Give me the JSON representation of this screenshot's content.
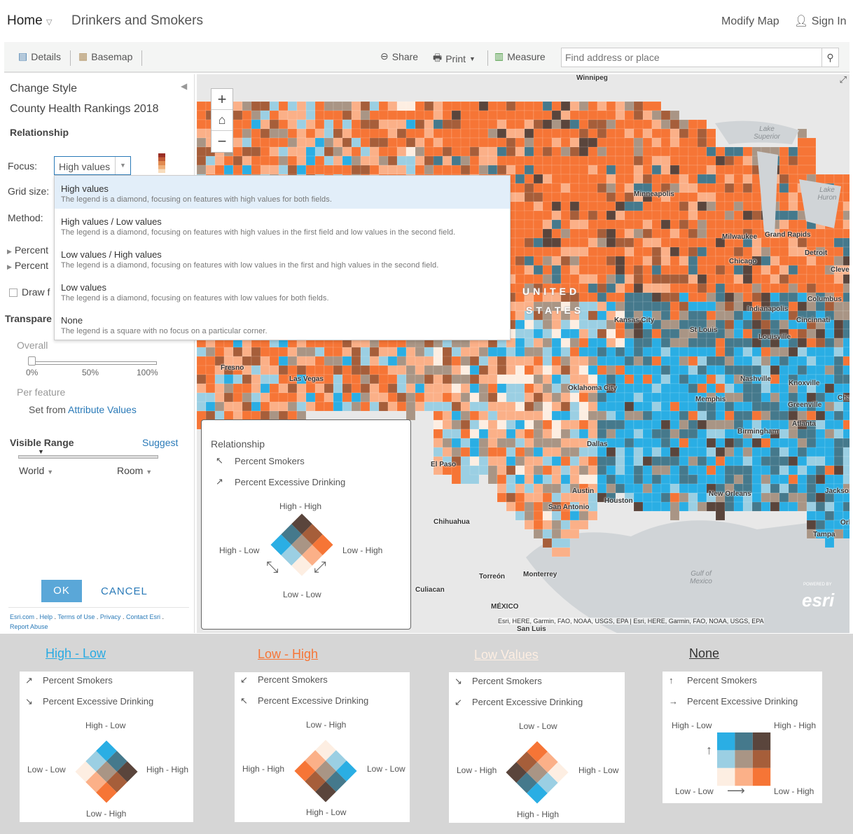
{
  "header": {
    "home": "Home",
    "title": "Drinkers and Smokers",
    "modify": "Modify Map",
    "signin": "Sign In"
  },
  "toolbar": {
    "details": "Details",
    "basemap": "Basemap",
    "share": "Share",
    "print": "Print",
    "measure": "Measure",
    "search_placeholder": "Find address or place"
  },
  "panel": {
    "change_style": "Change Style",
    "layer": "County Health Rankings 2018",
    "relationship": "Relationship",
    "focus_label": "Focus:",
    "focus_value": "High values",
    "grid_label": "Grid size:",
    "method_label": "Method:",
    "field1": "Percent",
    "field2": "Percent",
    "draw": "Draw f",
    "transparency": "Transpare",
    "overall": "Overall",
    "t0": "0%",
    "t50": "50%",
    "t100": "100%",
    "per_feature": "Per feature",
    "set_from": "Set from",
    "attr_values": "Attribute Values",
    "visible_range": "Visible Range",
    "suggest": "Suggest",
    "world": "World",
    "room": "Room",
    "ok": "OK",
    "cancel": "CANCEL",
    "footer": [
      "Esri.com",
      "Help",
      "Terms of Use",
      "Privacy",
      "Contact Esri",
      "Report Abuse"
    ]
  },
  "focus_options": [
    {
      "title": "High values",
      "desc": "The legend is a diamond, focusing on features with high values for both fields."
    },
    {
      "title": "High values / Low values",
      "desc": "The legend is a diamond, focusing on features with high values in the first field and low values in the second field."
    },
    {
      "title": "Low values / High values",
      "desc": "The legend is a diamond, focusing on features with low values in the first and high values in the second field."
    },
    {
      "title": "Low values",
      "desc": "The legend is a diamond, focusing on features with low values for both fields."
    },
    {
      "title": "None",
      "desc": "The legend is a square with no focus on a particular corner."
    }
  ],
  "colors": {
    "grid": [
      "#2aaee4",
      "#45798c",
      "#5a453c",
      "#9bcfe3",
      "#a99585",
      "#a65e3a",
      "#fdeee2",
      "#fbb088",
      "#f67536"
    ]
  },
  "legend": {
    "title": "Relationship",
    "f1": "Percent Smokers",
    "f2": "Percent Excessive Drinking",
    "top": "High - High",
    "left": "High - Low",
    "right": "Low - High",
    "bottom": "Low - Low"
  },
  "map": {
    "cities": [
      "Winnipeg",
      "Minneapolis",
      "Milwaukee",
      "Grand Rapids",
      "Detroit",
      "Cleveland",
      "Chicago",
      "Indianapolis",
      "Columbus",
      "Cincinnati",
      "Kansas City",
      "St Louis",
      "Louisville",
      "Nashville",
      "Knoxville",
      "Memphis",
      "Greenville",
      "Birmingham",
      "Atlanta",
      "Oklahoma City",
      "Dallas",
      "Fresno",
      "Las Vegas",
      "El Paso",
      "Austin",
      "San Antonio",
      "Houston",
      "New Orleans",
      "Jacksonville",
      "Tampa",
      "Chihuahua",
      "Torreón",
      "Monterrey",
      "Culiacan",
      "MÉXICO",
      "Orlan",
      "Cha",
      "San Luis"
    ],
    "country1": "UNITED",
    "country2": "STATES",
    "gulf": "Gulf of Mexico",
    "lake1": "Lake Superior",
    "lake2": "Lake Huron",
    "attribution": "Esri, HERE, Garmin, FAO, NOAA, USGS, EPA | Esri, HERE, Garmin, FAO, NOAA, USGS, EPA",
    "powered": "POWERED BY",
    "esri": "esri"
  },
  "examples": [
    {
      "title": "High - Low",
      "color": "#29aae2",
      "f1": "Percent Smokers",
      "f2": "Percent Excessive Drinking",
      "top": "High - Low",
      "left": "Low - Low",
      "right": "High - High",
      "bottom": "Low - High"
    },
    {
      "title": "Low - High",
      "color": "#f67536",
      "f1": "Percent Smokers",
      "f2": "Percent Excessive Drinking",
      "top": "Low - High",
      "left": "High - High",
      "right": "Low - Low",
      "bottom": "High - Low"
    },
    {
      "title": "Low Values",
      "color": "#fdeee2",
      "f1": "Percent Smokers",
      "f2": "Percent Excessive Drinking",
      "top": "Low - Low",
      "left": "Low - High",
      "right": "High - Low",
      "bottom": "High - High"
    },
    {
      "title": "None",
      "color": "#333333",
      "f1": "Percent Smokers",
      "f2": "Percent Excessive Drinking",
      "tl": "High - Low",
      "tr": "High - High",
      "bl": "Low - Low",
      "br": "Low - High"
    }
  ]
}
